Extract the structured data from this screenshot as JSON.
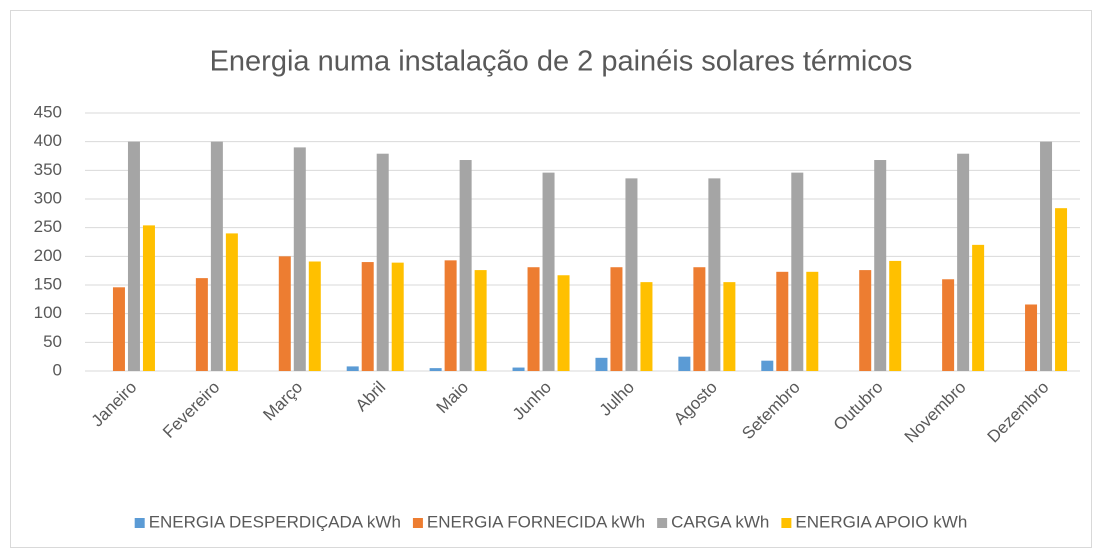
{
  "chart_data": {
    "type": "bar",
    "title": "Energia numa instalação de 2 painéis solares térmicos",
    "categories": [
      "Janeiro",
      "Fevereiro",
      "Março",
      "Abril",
      "Maio",
      "Junho",
      "Julho",
      "Agosto",
      "Setembro",
      "Outubro",
      "Novembro",
      "Dezembro"
    ],
    "series": [
      {
        "name": "ENERGIA DESPERDIÇADA kWh",
        "color": "#5b9bd5",
        "values": [
          0,
          0,
          0,
          8,
          5,
          6,
          23,
          25,
          18,
          0,
          0,
          0
        ]
      },
      {
        "name": "ENERGIA FORNECIDA kWh",
        "color": "#ed7d31",
        "values": [
          146,
          162,
          200,
          190,
          193,
          181,
          181,
          181,
          173,
          176,
          160,
          116
        ]
      },
      {
        "name": "CARGA kWh",
        "color": "#a5a5a5",
        "values": [
          400,
          400,
          390,
          379,
          368,
          346,
          336,
          336,
          346,
          368,
          379,
          400
        ]
      },
      {
        "name": "ENERGIA APOIO kWh",
        "color": "#ffc000",
        "values": [
          254,
          240,
          191,
          189,
          176,
          167,
          155,
          155,
          173,
          192,
          220,
          284
        ]
      }
    ],
    "ylim": [
      0,
      450
    ],
    "yticks": [
      0,
      50,
      100,
      150,
      200,
      250,
      300,
      350,
      400,
      450
    ],
    "grid": true,
    "legend": "bottom"
  }
}
